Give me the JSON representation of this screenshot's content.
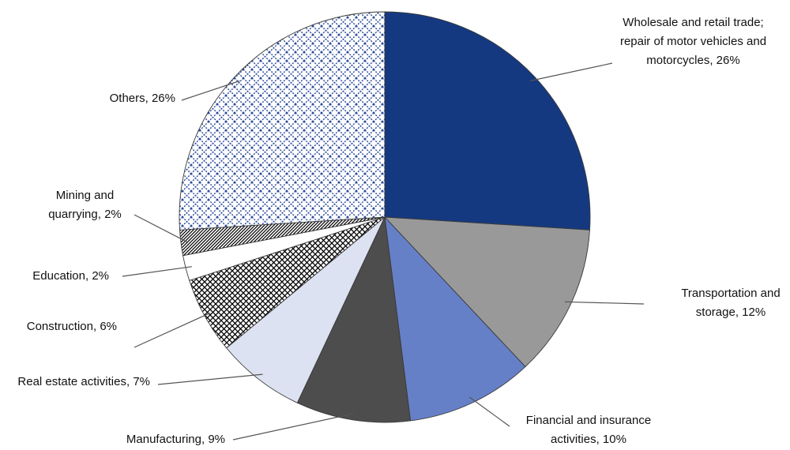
{
  "chart_data": {
    "type": "pie",
    "categories": [
      "Wholesale and retail trade; repair of motor vehicles and motorcycles",
      "Transportation and storage",
      "Financial and insurance activities",
      "Manufacturing",
      "Real estate activities",
      "Construction",
      "Education",
      "Mining and quarrying",
      "Others"
    ],
    "values": [
      26,
      12,
      10,
      9,
      7,
      6,
      2,
      2,
      26
    ],
    "value_labels": [
      "26%",
      "12%",
      "10%",
      "9%",
      "7%",
      "6%",
      "2%",
      "2%",
      "26%"
    ],
    "colors": [
      "#143980",
      "#999999",
      "#6680c8",
      "#4d4d4d",
      "#dde2f2",
      "#000000",
      "#ffffff",
      "#000000",
      "#2a4a9a"
    ],
    "hatch": [
      null,
      null,
      null,
      null,
      null,
      "crosshatch",
      null,
      "stripes",
      "diamond"
    ]
  }
}
